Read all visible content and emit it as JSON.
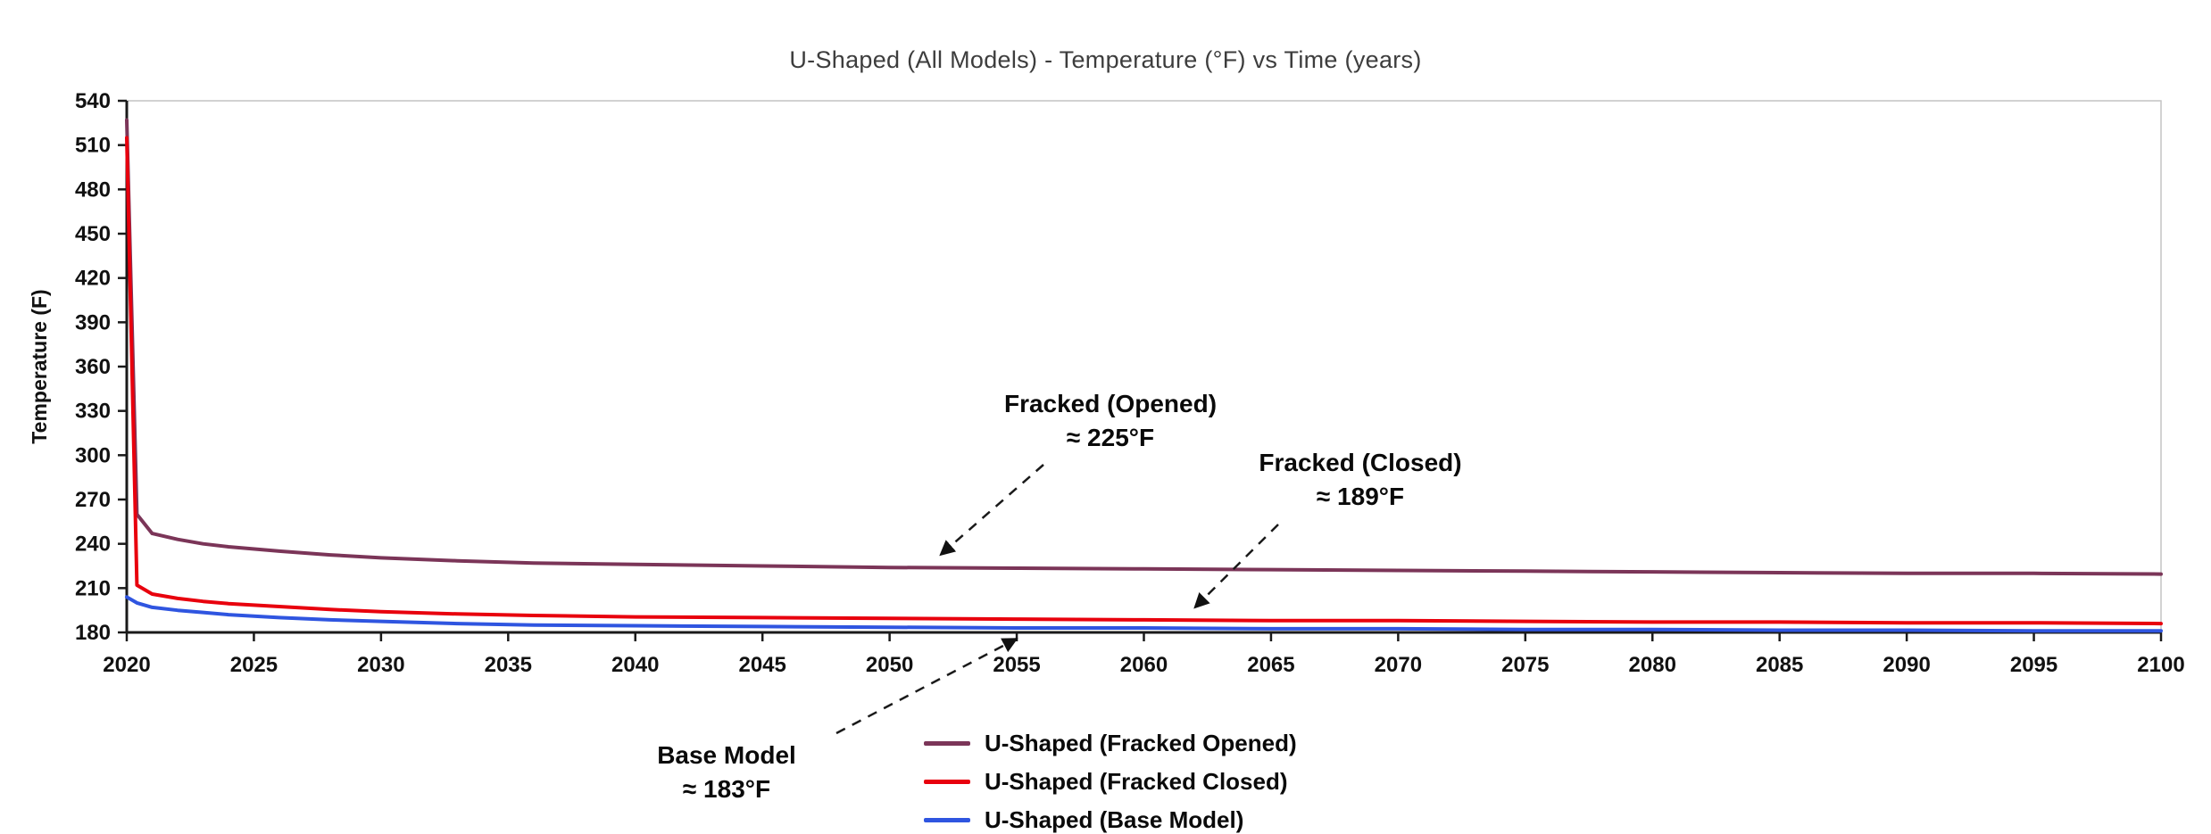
{
  "chart_data": {
    "type": "line",
    "title": "U-Shaped (All Models) - Temperature (°F) vs Time (years)",
    "xlabel": "",
    "ylabel": "Temperature (F)",
    "xlim": [
      2020,
      2100
    ],
    "ylim": [
      180,
      540
    ],
    "xticks": [
      2020,
      2025,
      2030,
      2035,
      2040,
      2045,
      2050,
      2055,
      2060,
      2065,
      2070,
      2075,
      2080,
      2085,
      2090,
      2095,
      2100
    ],
    "yticks": [
      180,
      210,
      240,
      270,
      300,
      330,
      360,
      390,
      420,
      450,
      480,
      510,
      540
    ],
    "grid": false,
    "legend_position": "bottom-center",
    "x": [
      2020,
      2020.4,
      2021,
      2022,
      2023,
      2024,
      2026,
      2028,
      2030,
      2033,
      2036,
      2040,
      2045,
      2050,
      2055,
      2060,
      2065,
      2070,
      2075,
      2080,
      2085,
      2090,
      2095,
      2100
    ],
    "series": [
      {
        "name": "U-Shaped (Fracked Opened)",
        "color": "#7b3558",
        "values": [
          527,
          260,
          247,
          243,
          240,
          238,
          235,
          232.5,
          230.5,
          228.5,
          227,
          226,
          225,
          224,
          223.5,
          223,
          222.5,
          222,
          221.5,
          221,
          220.5,
          220,
          220,
          219.5
        ]
      },
      {
        "name": "U-Shaped (Fracked Closed)",
        "color": "#e8000d",
        "values": [
          515,
          212,
          206,
          203,
          201,
          199.5,
          197.5,
          195.5,
          194,
          192.5,
          191.5,
          190.5,
          190,
          189.5,
          189,
          188.5,
          188,
          188,
          187.5,
          187,
          187,
          186.5,
          186.5,
          186
        ]
      },
      {
        "name": "U-Shaped (Base Model)",
        "color": "#2f55e0",
        "values": [
          204,
          200,
          197,
          195,
          193.5,
          192,
          190,
          188.5,
          187.5,
          186,
          185,
          184.5,
          184,
          183.5,
          183,
          183,
          182.5,
          182.5,
          182,
          182,
          181.5,
          181.5,
          181,
          181
        ]
      }
    ],
    "annotations": [
      {
        "label": "Fracked (Opened)",
        "value_label": "≈ 225°F",
        "target_year": 2052,
        "target_value": 224
      },
      {
        "label": "Fracked (Closed)",
        "value_label": "≈ 189°F",
        "target_year": 2062,
        "target_value": 188.3
      },
      {
        "label": "Base Model",
        "value_label": "≈ 183°F",
        "target_year": 2055,
        "target_value": 183
      }
    ]
  }
}
